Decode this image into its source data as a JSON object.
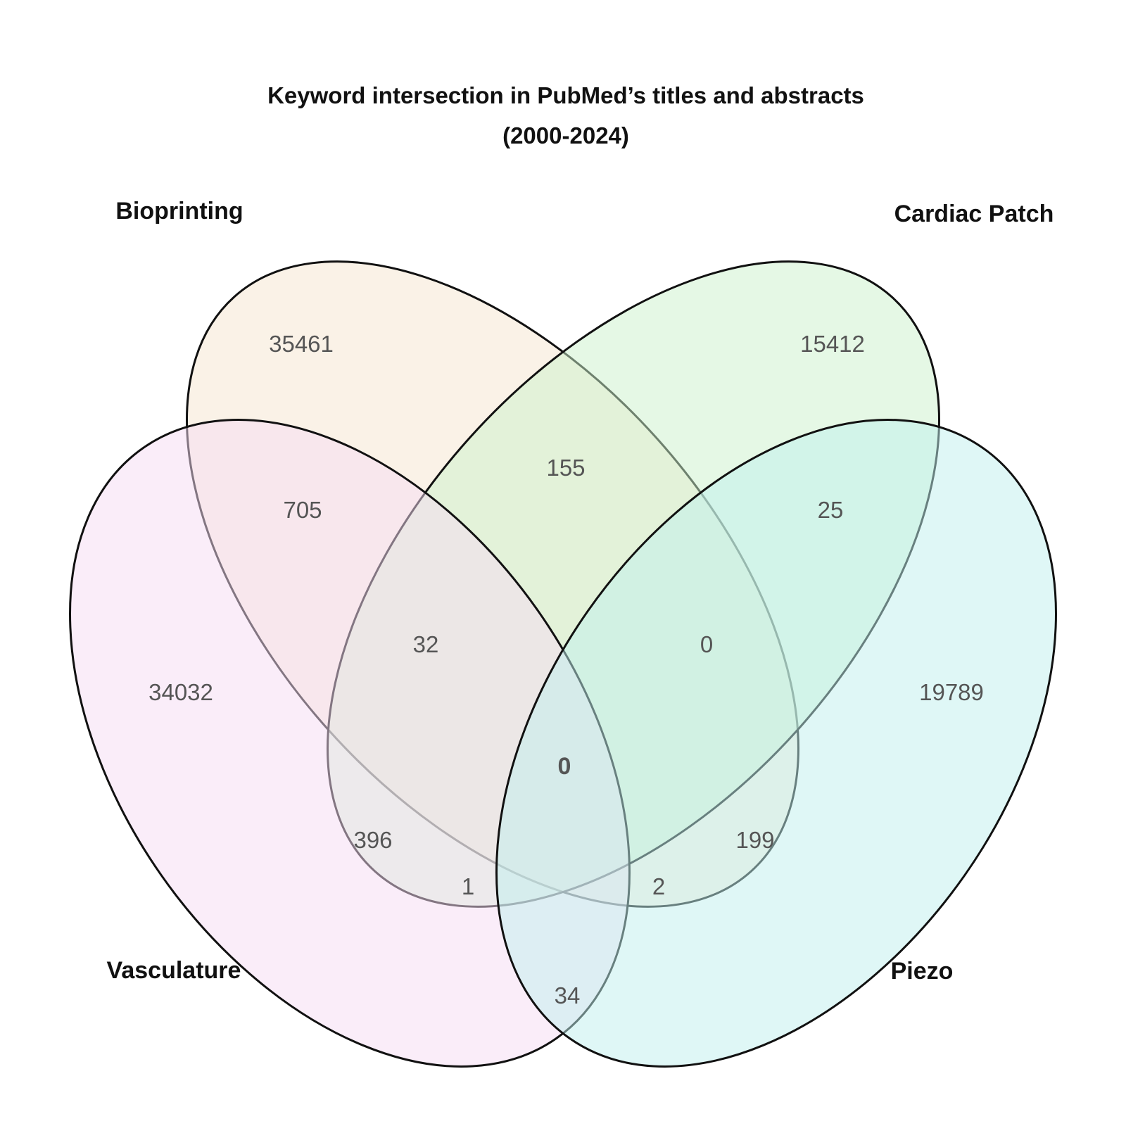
{
  "title": {
    "line1": "Keyword intersection in PubMed’s titles and abstracts",
    "line2": "(2000-2024)"
  },
  "sets": [
    {
      "id": "bioprinting",
      "label": "Bioprinting",
      "color": "#f5e6d0"
    },
    {
      "id": "cardiac",
      "label": "Cardiac Patch",
      "color": "#ccf2cc"
    },
    {
      "id": "vasculature",
      "label": "Vasculature",
      "color": "#f5dcf3"
    },
    {
      "id": "piezo",
      "label": "Piezo",
      "color": "#bff0ee"
    }
  ],
  "regions": {
    "bioprinting_only": "35461",
    "cardiac_only": "15412",
    "vasculature_only": "34032",
    "piezo_only": "19789",
    "bioprinting_cardiac": "155",
    "bioprinting_vasculature": "705",
    "cardiac_piezo": "25",
    "bioprinting_cardiac_vasculature": "32",
    "bioprinting_cardiac_piezo": "0",
    "all_four": "0",
    "cardiac_vasculature": "396",
    "bioprinting_piezo": "199",
    "cardiac_vasculature_piezo": "1",
    "bioprinting_vasculature_piezo": "2",
    "vasculature_piezo": "34"
  }
}
